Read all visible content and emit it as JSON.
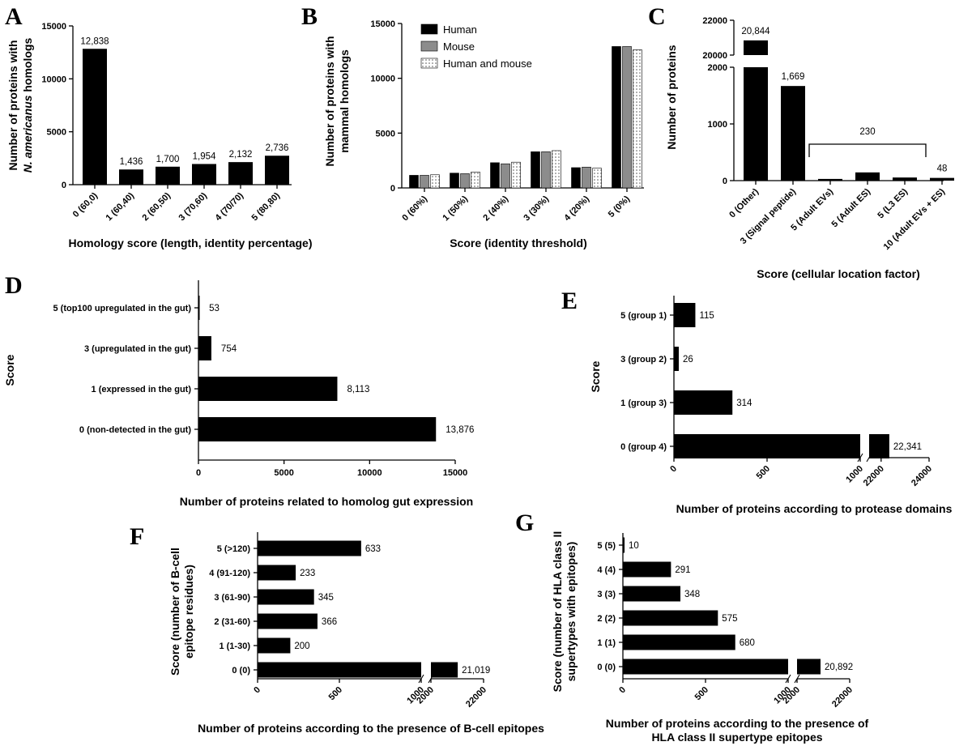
{
  "chart_data": [
    {
      "panel": "A",
      "type": "bar",
      "categories": [
        "0 (60,0)",
        "1 (60,40)",
        "2 (60,50)",
        "3 (70,60)",
        "4 (70/70)",
        "5 (80,80)"
      ],
      "values": [
        12838,
        1436,
        1700,
        1954,
        2132,
        2736
      ],
      "value_labels": [
        "12,838",
        "1,436",
        "1,700",
        "1,954",
        "2,132",
        "2,736"
      ],
      "xlabel": "Homology score (length, identity percentage)",
      "ylabel_lines": [
        "Number of proteins with",
        "N. americanus homologs"
      ],
      "yticks": [
        "0",
        "5000",
        "10000",
        "15000"
      ],
      "ylim": [
        0,
        15000
      ]
    },
    {
      "panel": "B",
      "type": "bar",
      "categories": [
        "0 (60%)",
        "1 (50%)",
        "2 (40%)",
        "3 (30%)",
        "4 (20%)",
        "5 (0%)"
      ],
      "series": [
        {
          "name": "Human",
          "color": "#000000",
          "values": [
            1150,
            1350,
            2300,
            3300,
            1850,
            12900
          ]
        },
        {
          "name": "Mouse",
          "color": "#8c8c8c",
          "values": [
            1150,
            1300,
            2200,
            3300,
            1900,
            12900
          ]
        },
        {
          "name": "Human and mouse",
          "color": "#eeeeee",
          "values": [
            1200,
            1450,
            2350,
            3400,
            1800,
            12600
          ]
        }
      ],
      "xlabel": "Score (identity threshold)",
      "ylabel_lines": [
        "Number of proteins with",
        "mammal homologs"
      ],
      "yticks": [
        "0",
        "5000",
        "10000",
        "15000"
      ],
      "ylim": [
        0,
        15000
      ],
      "legend_position": "top-center"
    },
    {
      "panel": "C",
      "type": "bar",
      "broken_axis": true,
      "categories": [
        "0 (Other)",
        "3 (Signal peptide)",
        "5 (Adult EVs)",
        "5 (Adult ES)",
        "5 (L3 ES)",
        "10 (Adult EVs + ES)"
      ],
      "values": [
        20844,
        1669,
        30,
        145,
        55,
        48
      ],
      "value_labels": [
        "20,844",
        "1,669",
        "",
        "",
        "",
        "48"
      ],
      "bracket_label": "230",
      "xlabel": "Score (cellular location factor)",
      "ylabel": "Number of proteins",
      "yticks_lower": [
        "0",
        "1000",
        "2000"
      ],
      "yticks_upper": [
        "20000",
        "22000"
      ]
    },
    {
      "panel": "D",
      "type": "bar",
      "orientation": "horizontal",
      "categories": [
        "5 (top100 upregulated in the gut)",
        "3 (upregulated in the gut)",
        "1 (expressed in the gut)",
        "0 (non-detected in the gut)"
      ],
      "values": [
        53,
        754,
        8113,
        13876
      ],
      "value_labels": [
        "53",
        "754",
        "8,113",
        "13,876"
      ],
      "xlabel": "Number of proteins related to homolog gut expression",
      "ylabel": "Score",
      "xticks": [
        "0",
        "5000",
        "10000",
        "15000"
      ],
      "xlim": [
        0,
        15000
      ]
    },
    {
      "panel": "E",
      "type": "bar",
      "orientation": "horizontal",
      "broken_axis": true,
      "categories": [
        "5 (group 1)",
        "3 (group 2)",
        "1 (group 3)",
        "0 (group 4)"
      ],
      "values": [
        115,
        26,
        314,
        22341
      ],
      "value_labels": [
        "115",
        "26",
        "314",
        "22,341"
      ],
      "xlabel": "Number of proteins according to protease domains",
      "ylabel": "Score",
      "xticks": [
        "0",
        "500",
        "1000",
        "22000",
        "24000"
      ]
    },
    {
      "panel": "F",
      "type": "bar",
      "orientation": "horizontal",
      "broken_axis": true,
      "categories": [
        "5 (>120)",
        "4 (91-120)",
        "3 (61-90)",
        "2 (31-60)",
        "1 (1-30)",
        "0 (0)"
      ],
      "values": [
        633,
        233,
        345,
        366,
        200,
        21019
      ],
      "value_labels": [
        "633",
        "233",
        "345",
        "366",
        "200",
        "21,019"
      ],
      "xlabel": "Number of proteins according to the presence of B-cell epitopes",
      "ylabel_lines": [
        "Score (number of B-cell",
        "epitope residues)"
      ],
      "xticks": [
        "0",
        "500",
        "1000",
        "2000",
        "22000"
      ]
    },
    {
      "panel": "G",
      "type": "bar",
      "orientation": "horizontal",
      "broken_axis": true,
      "categories": [
        "5 (5)",
        "4 (4)",
        "3 (3)",
        "2 (2)",
        "1 (1)",
        "0 (0)"
      ],
      "values": [
        10,
        291,
        348,
        575,
        680,
        20892
      ],
      "value_labels": [
        "10",
        "291",
        "348",
        "575",
        "680",
        "20,892"
      ],
      "xlabel_lines": [
        "Number of proteins according to the presence of",
        "HLA class II supertype epitopes"
      ],
      "ylabel_lines": [
        "Score (number of HLA class II",
        "supertypes with epitopes)"
      ],
      "xticks": [
        "0",
        "500",
        "1000",
        "2000",
        "22000"
      ]
    }
  ]
}
